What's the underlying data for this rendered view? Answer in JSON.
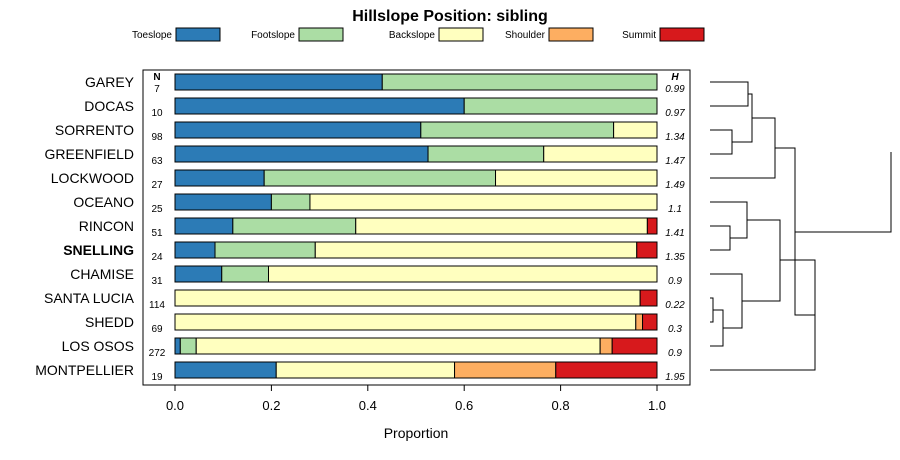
{
  "chart_data": {
    "type": "bar",
    "subtype": "stacked-horizontal-proportion",
    "title": "Hillslope Position: sibling",
    "xlabel": "Proportion",
    "xlim": [
      0,
      1
    ],
    "xticks": [
      "0.0",
      "0.2",
      "0.4",
      "0.6",
      "0.8",
      "1.0"
    ],
    "n_header": "N",
    "h_header": "H",
    "legend": [
      {
        "name": "Toeslope",
        "color": "#2c7bb6"
      },
      {
        "name": "Footslope",
        "color": "#abdda4"
      },
      {
        "name": "Backslope",
        "color": "#ffffbf"
      },
      {
        "name": "Shoulder",
        "color": "#fdae61"
      },
      {
        "name": "Summit",
        "color": "#d7191c"
      }
    ],
    "categories": [
      "GAREY",
      "DOCAS",
      "SORRENTO",
      "GREENFIELD",
      "LOCKWOOD",
      "OCEANO",
      "RINCON",
      "SNELLING",
      "CHAMISE",
      "SANTA LUCIA",
      "SHEDD",
      "LOS OSOS",
      "MONTPELLIER"
    ],
    "highlight": "SNELLING",
    "n": [
      "7",
      "10",
      "98",
      "63",
      "27",
      "25",
      "51",
      "24",
      "31",
      "114",
      "69",
      "272",
      "19"
    ],
    "h": [
      "0.99",
      "0.97",
      "1.34",
      "1.47",
      "1.49",
      "1.1",
      "1.41",
      "1.35",
      "0.9",
      "0.22",
      "0.3",
      "0.9",
      "1.95"
    ],
    "series": [
      {
        "name": "Toeslope",
        "values": [
          0.43,
          0.6,
          0.51,
          0.525,
          0.185,
          0.2,
          0.12,
          0.083,
          0.097,
          0.0,
          0.0,
          0.011,
          0.21
        ]
      },
      {
        "name": "Footslope",
        "values": [
          0.57,
          0.4,
          0.4,
          0.24,
          0.48,
          0.08,
          0.255,
          0.208,
          0.097,
          0.0,
          0.0,
          0.033,
          0.0
        ]
      },
      {
        "name": "Backslope",
        "values": [
          0.0,
          0.0,
          0.09,
          0.235,
          0.335,
          0.72,
          0.605,
          0.667,
          0.806,
          0.965,
          0.956,
          0.838,
          0.37
        ]
      },
      {
        "name": "Shoulder",
        "values": [
          0.0,
          0.0,
          0.0,
          0.0,
          0.0,
          0.0,
          0.0,
          0.0,
          0.0,
          0.0,
          0.014,
          0.025,
          0.21
        ]
      },
      {
        "name": "Summit",
        "values": [
          0.0,
          0.0,
          0.0,
          0.0,
          0.0,
          0.0,
          0.02,
          0.042,
          0.0,
          0.035,
          0.03,
          0.093,
          0.21
        ]
      }
    ]
  }
}
